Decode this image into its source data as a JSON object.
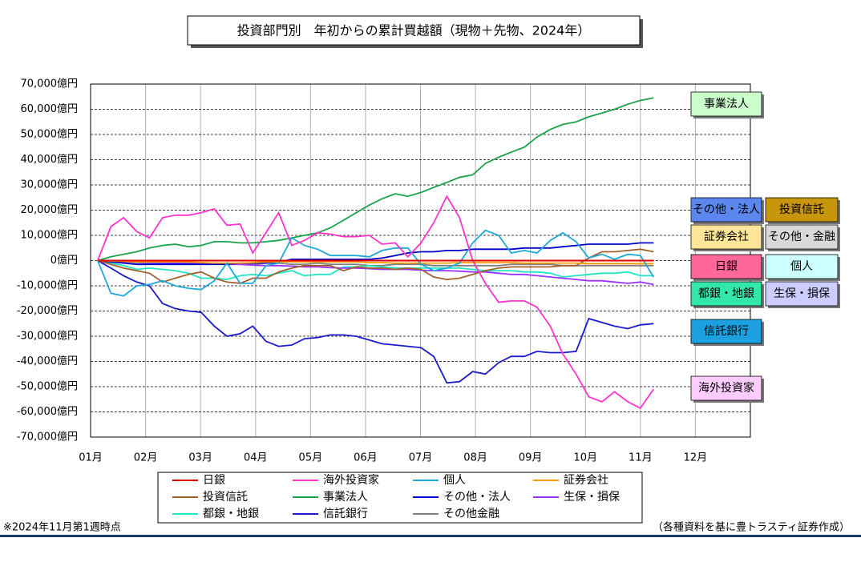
{
  "chart_data": {
    "type": "line",
    "title": "投資部門別　年初からの累計買越額（現物＋先物、2024年）",
    "note": "※2024年11月第1週時点",
    "source": "（各種資料を基に豊トラスティ証券作成）",
    "xlim": [
      0,
      12
    ],
    "xticks": [
      {
        "value": 0,
        "label": "01月"
      },
      {
        "value": 1,
        "label": "02月"
      },
      {
        "value": 2,
        "label": "03月"
      },
      {
        "value": 3,
        "label": "04月"
      },
      {
        "value": 4,
        "label": "05月"
      },
      {
        "value": 5,
        "label": "06月"
      },
      {
        "value": 6,
        "label": "07月"
      },
      {
        "value": 7,
        "label": "08月"
      },
      {
        "value": 8,
        "label": "09月"
      },
      {
        "value": 9,
        "label": "10月"
      },
      {
        "value": 10,
        "label": "11月"
      },
      {
        "value": 11,
        "label": "12月"
      }
    ],
    "ylim": [
      -70000,
      70000
    ],
    "yticks": [
      {
        "value": 70000,
        "label": "70,000億円"
      },
      {
        "value": 60000,
        "label": "60,000億円"
      },
      {
        "value": 50000,
        "label": "50,000億円"
      },
      {
        "value": 40000,
        "label": "40,000億円"
      },
      {
        "value": 30000,
        "label": "30,000億円"
      },
      {
        "value": 20000,
        "label": "20,000億円"
      },
      {
        "value": 10000,
        "label": "10,000億円"
      },
      {
        "value": 0,
        "label": "0億円"
      },
      {
        "value": -10000,
        "label": "-10,000億円"
      },
      {
        "value": -20000,
        "label": "-20,000億円"
      },
      {
        "value": -30000,
        "label": "-30,000億円"
      },
      {
        "value": -40000,
        "label": "-40,000億円"
      },
      {
        "value": -50000,
        "label": "-50,000億円"
      },
      {
        "value": -60000,
        "label": "-60,000億円"
      },
      {
        "value": -70000,
        "label": "-70,000億円"
      }
    ],
    "grid": true,
    "x": [
      0.13,
      0.37,
      0.6,
      0.84,
      1.07,
      1.31,
      1.54,
      1.78,
      2.01,
      2.25,
      2.48,
      2.72,
      2.95,
      3.19,
      3.42,
      3.66,
      3.89,
      4.13,
      4.36,
      4.6,
      4.83,
      5.07,
      5.3,
      5.54,
      5.77,
      6.01,
      6.24,
      6.48,
      6.71,
      6.95,
      7.18,
      7.42,
      7.65,
      7.89,
      8.12,
      8.36,
      8.59,
      8.83,
      9.06,
      9.3,
      9.53,
      9.77,
      10.0,
      10.24
    ],
    "series": [
      {
        "name": "日銀",
        "color": "#e00000",
        "values": [
          0,
          0,
          0,
          0,
          0,
          0,
          0,
          0,
          0,
          0,
          0,
          0,
          0,
          0,
          0,
          0,
          0,
          0,
          0,
          0,
          0,
          0,
          0,
          0,
          0,
          0,
          0,
          0,
          0,
          0,
          0,
          0,
          0,
          0,
          0,
          0,
          0,
          0,
          0,
          0,
          0,
          0,
          0,
          0
        ]
      },
      {
        "name": "海外投資家",
        "color": "#ff33cc",
        "values": [
          0,
          13500,
          17000,
          11500,
          9000,
          17000,
          18000,
          18000,
          19000,
          20500,
          14000,
          14500,
          3000,
          11000,
          19000,
          6000,
          8000,
          11000,
          10500,
          9500,
          9500,
          10000,
          6500,
          7000,
          1500,
          7000,
          15000,
          25500,
          17000,
          0,
          -9000,
          -16500,
          -16000,
          -16000,
          -18500,
          -26000,
          -37000,
          -45000,
          -54000,
          -56000,
          -52000,
          -56000,
          -58500,
          -51000
        ]
      },
      {
        "name": "個人",
        "color": "#1ea8d8",
        "values": [
          0,
          -13000,
          -14000,
          -10000,
          -9500,
          -8000,
          -10000,
          -11000,
          -11500,
          -8000,
          -1000,
          -9000,
          -9000,
          -2000,
          -1000,
          9000,
          6000,
          4500,
          2000,
          2000,
          2000,
          1500,
          4000,
          5000,
          5000,
          -1500,
          -4000,
          -3000,
          -1000,
          7000,
          12000,
          10000,
          3000,
          4000,
          3000,
          8000,
          11000,
          7500,
          1000,
          2500,
          500,
          2500,
          2000,
          -6500
        ]
      },
      {
        "name": "証券会社",
        "color": "#ff9900",
        "values": [
          0,
          -200,
          -300,
          -500,
          -500,
          -500,
          -500,
          -500,
          -800,
          -1000,
          -1000,
          -1000,
          -800,
          -500,
          -500,
          -500,
          -500,
          -500,
          -500,
          -500,
          -500,
          -800,
          -800,
          -1000,
          -1000,
          -1000,
          -1000,
          -1000,
          -800,
          -800,
          -800,
          -800,
          -800,
          -1000,
          -1000,
          -1000,
          -1000,
          -1000,
          -1200,
          -1200,
          -1200,
          -1200,
          -1200,
          -1200
        ]
      },
      {
        "name": "投資信託",
        "color": "#a0602a",
        "values": [
          0,
          -1500,
          -3000,
          -4000,
          -5000,
          -8500,
          -7000,
          -5500,
          -4500,
          -7000,
          -8500,
          -9000,
          -7000,
          -7000,
          -4500,
          -3000,
          -2000,
          -2000,
          -2000,
          -4000,
          -2500,
          -3000,
          -3000,
          -3500,
          -3000,
          -3500,
          -6500,
          -7500,
          -7000,
          -5500,
          -4000,
          -3000,
          -2500,
          -2500,
          -2500,
          -2500,
          -2000,
          -2000,
          1000,
          3500,
          3500,
          4000,
          4500,
          3500
        ]
      },
      {
        "name": "事業法人",
        "color": "#1aa34a",
        "values": [
          0,
          1500,
          2500,
          3500,
          5000,
          6000,
          6500,
          5500,
          6000,
          7500,
          7500,
          7000,
          7000,
          7500,
          8000,
          9000,
          10000,
          11000,
          13000,
          16000,
          19000,
          22000,
          24500,
          26500,
          25500,
          27000,
          29000,
          31000,
          33000,
          34000,
          38500,
          41000,
          43000,
          45000,
          49000,
          52000,
          54000,
          55000,
          57000,
          58500,
          60000,
          62000,
          63500,
          64500
        ]
      },
      {
        "name": "その他・法人",
        "color": "#0000cc",
        "values": [
          0,
          -500,
          -1000,
          -1500,
          -1500,
          -1500,
          -1500,
          -1500,
          -1500,
          -1500,
          -1500,
          -1000,
          -1000,
          -1000,
          -500,
          500,
          500,
          500,
          500,
          500,
          500,
          500,
          1000,
          2000,
          3000,
          3500,
          3500,
          4000,
          4000,
          4500,
          4500,
          4500,
          4500,
          5000,
          5000,
          5000,
          5500,
          6000,
          6500,
          6500,
          6500,
          6500,
          7000,
          7000
        ]
      },
      {
        "name": "生保・損保",
        "color": "#9933ff",
        "values": [
          0,
          -200,
          -400,
          -600,
          -800,
          -1000,
          -1000,
          -1200,
          -1200,
          -1400,
          -1500,
          -1500,
          -1800,
          -2000,
          -2000,
          -2200,
          -2500,
          -2500,
          -2800,
          -3000,
          -3000,
          -3200,
          -3500,
          -3500,
          -3500,
          -3800,
          -4000,
          -4000,
          -4200,
          -4500,
          -4500,
          -5000,
          -5500,
          -5500,
          -6000,
          -6500,
          -7000,
          -7500,
          -8000,
          -8000,
          -8500,
          -9000,
          -8500,
          -9500
        ]
      },
      {
        "name": "都銀・地銀",
        "color": "#22e5c5",
        "values": [
          0,
          -1000,
          -2000,
          -3500,
          -3000,
          -3500,
          -4000,
          -5000,
          -7000,
          -7000,
          -7500,
          -6000,
          -5500,
          -6000,
          -5000,
          -4000,
          -6000,
          -5500,
          -5500,
          -2500,
          -2500,
          -2000,
          -2500,
          -3000,
          -3000,
          -3000,
          -3000,
          -3000,
          -3000,
          -3500,
          -4000,
          -4000,
          -4000,
          -4500,
          -4500,
          -5000,
          -6500,
          -6000,
          -5500,
          -5000,
          -5000,
          -4500,
          -6000,
          -6000
        ]
      },
      {
        "name": "信託銀行",
        "color": "#1a1acc",
        "values": [
          0,
          -3000,
          -6000,
          -8500,
          -10000,
          -17000,
          -19000,
          -20000,
          -20500,
          -26000,
          -30000,
          -29000,
          -26000,
          -32000,
          -34000,
          -33500,
          -31000,
          -30500,
          -29500,
          -29500,
          -30000,
          -31500,
          -33000,
          -33500,
          -34000,
          -34500,
          -38000,
          -48500,
          -48000,
          -44000,
          -45000,
          -40500,
          -38000,
          -38000,
          -36000,
          -36500,
          -36500,
          -36000,
          -23000,
          -24500,
          -26000,
          -27000,
          -25500,
          -25000
        ]
      },
      {
        "name": "その他金融",
        "color": "#808080",
        "values": [
          0,
          -300,
          -500,
          -800,
          -1000,
          -1000,
          -1200,
          -1000,
          -800,
          -1000,
          -1200,
          -1500,
          -1500,
          -1000,
          -1000,
          -1500,
          -1500,
          -1000,
          -1500,
          -1500,
          -1500,
          -2000,
          -2000,
          -1500,
          -1500,
          -1500,
          -2000,
          -2000,
          -2000,
          -2000,
          -2000,
          -2000,
          -1500,
          -1500,
          -1500,
          -1500,
          -2000,
          -2000,
          -2000,
          -2000,
          -2000,
          -2000,
          -2000,
          -2000
        ]
      }
    ],
    "annotations": [
      {
        "text": "事業法人",
        "color": "#ccffcc"
      },
      {
        "text": "その他・法人",
        "color": "#5b87ee"
      },
      {
        "text": "投資信託",
        "color": "#c8960c"
      },
      {
        "text": "証券会社",
        "color": "#ffe699"
      },
      {
        "text": "その他・金融",
        "color": "#d9d9d9"
      },
      {
        "text": "日銀",
        "color": "#ff6699"
      },
      {
        "text": "個人",
        "color": "#ccffff"
      },
      {
        "text": "都銀・地銀",
        "color": "#33e6aa"
      },
      {
        "text": "生保・損保",
        "color": "#ccccff"
      },
      {
        "text": "信託銀行",
        "color": "#1ca0e0"
      },
      {
        "text": "海外投資家",
        "color": "#ffccff"
      }
    ]
  }
}
